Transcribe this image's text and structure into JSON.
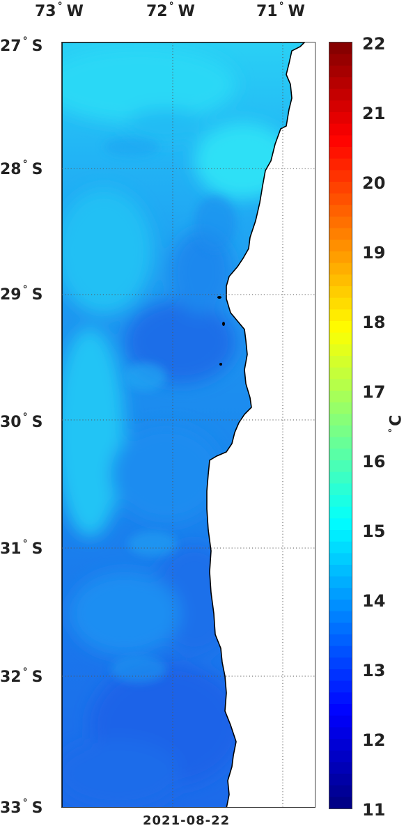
{
  "map": {
    "longitude_labels": [
      "73",
      "72",
      "71"
    ],
    "longitude_suffix": "W",
    "latitude_labels": [
      "27",
      "28",
      "29",
      "30",
      "31",
      "32",
      "33"
    ],
    "latitude_suffix": "S",
    "date": "2021-08-22"
  },
  "colorbar": {
    "ticks": [
      "22",
      "21",
      "20",
      "19",
      "18",
      "17",
      "16",
      "15",
      "14",
      "13",
      "12",
      "11"
    ],
    "unit": "C",
    "range": [
      11,
      22
    ],
    "colormap": "jet"
  },
  "colors": {
    "ocean_cool": "#1e6cf0",
    "ocean_mid": "#1e90f5",
    "ocean_warm": "#25d8f5",
    "land": "#ffffff",
    "coastline": "#000000",
    "grid": "#444444"
  }
}
